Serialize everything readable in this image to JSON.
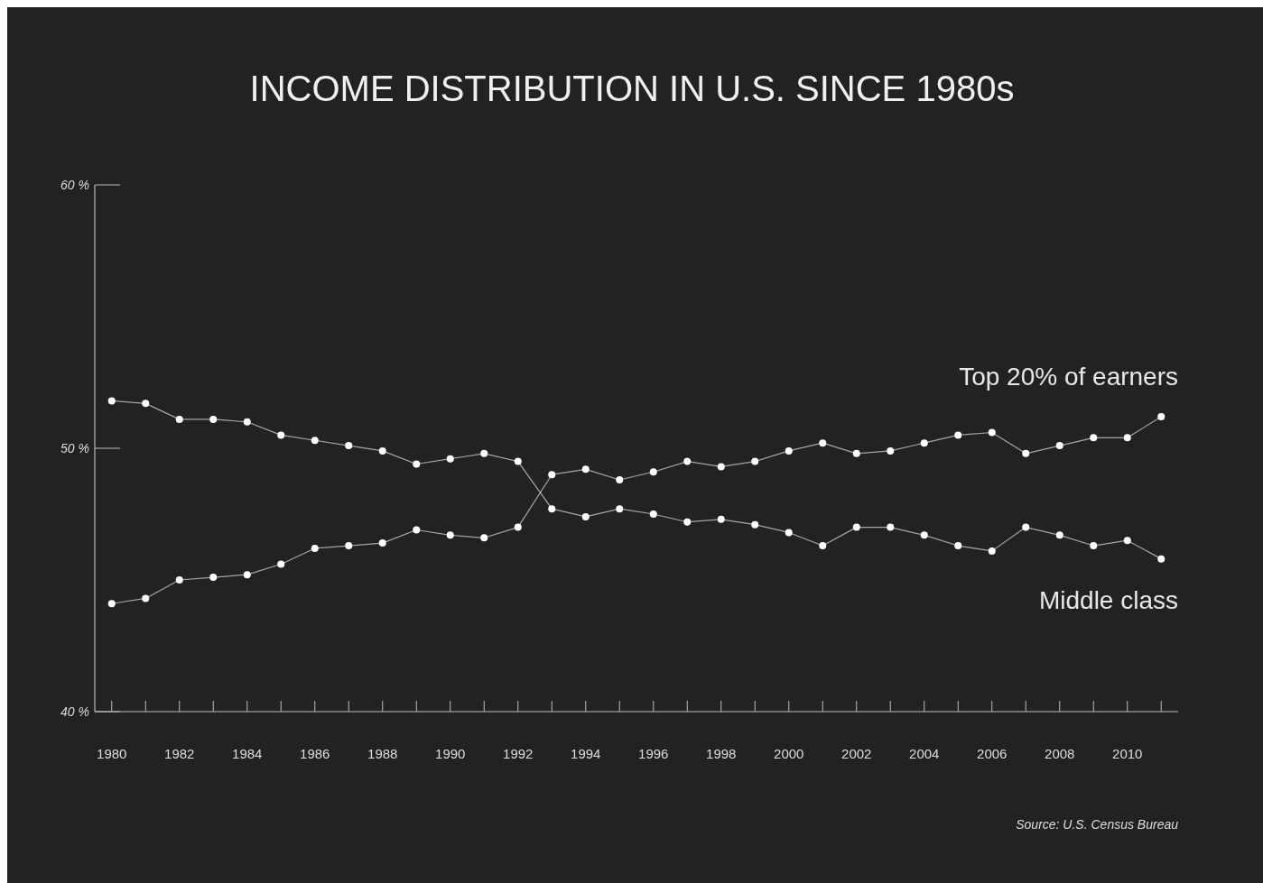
{
  "chart_data": {
    "type": "line",
    "title": "INCOME DISTRIBUTION IN U.S. SINCE 1980s",
    "x": [
      1980,
      1981,
      1982,
      1983,
      1984,
      1985,
      1986,
      1987,
      1988,
      1989,
      1990,
      1991,
      1992,
      1993,
      1994,
      1995,
      1996,
      1997,
      1998,
      1999,
      2000,
      2001,
      2002,
      2003,
      2004,
      2005,
      2006,
      2007,
      2008,
      2009,
      2010,
      2011
    ],
    "series": [
      {
        "name": "Top 20% of earners",
        "color": "#ffffff",
        "values": [
          44.1,
          44.3,
          45.0,
          45.1,
          45.2,
          45.6,
          46.2,
          46.3,
          46.4,
          46.9,
          46.7,
          46.6,
          47.0,
          49.0,
          49.2,
          48.8,
          49.1,
          49.5,
          49.3,
          49.5,
          49.9,
          50.2,
          49.8,
          49.9,
          50.2,
          50.5,
          50.6,
          49.8,
          50.1,
          50.4,
          50.4,
          51.2
        ]
      },
      {
        "name": "Middle class",
        "color": "#ffffff",
        "values": [
          51.8,
          51.7,
          51.1,
          51.1,
          51.0,
          50.5,
          50.3,
          50.1,
          49.9,
          49.4,
          49.6,
          49.8,
          49.5,
          47.7,
          47.4,
          47.7,
          47.5,
          47.2,
          47.3,
          47.1,
          46.8,
          46.3,
          47.0,
          47.0,
          46.7,
          46.3,
          46.1,
          47.0,
          46.7,
          46.3,
          46.5,
          45.8
        ]
      }
    ],
    "xlim": [
      1979.5,
      2011.5
    ],
    "xticks": [
      1980,
      {
        "value": 1981,
        "label": null
      },
      1982,
      {
        "value": 1983,
        "label": null
      },
      1984,
      {
        "value": 1985,
        "label": null
      },
      1986,
      {
        "value": 1987,
        "label": null
      },
      1988,
      {
        "value": 1989,
        "label": null
      },
      1990,
      {
        "value": 1991,
        "label": null
      },
      1992,
      {
        "value": 1993,
        "label": null
      },
      1994,
      {
        "value": 1995,
        "label": null
      },
      1996,
      {
        "value": 1997,
        "label": null
      },
      1998,
      {
        "value": 1999,
        "label": null
      },
      2000,
      {
        "value": 2001,
        "label": null
      },
      2002,
      {
        "value": 2003,
        "label": null
      },
      2004,
      {
        "value": 2005,
        "label": null
      },
      2006,
      {
        "value": 2007,
        "label": null
      },
      2008,
      {
        "value": 2009,
        "label": null
      },
      2010,
      {
        "value": 2011,
        "label": null
      }
    ],
    "ylim": [
      40,
      60
    ],
    "yticks": [
      {
        "value": 40,
        "label": "40 %"
      },
      {
        "value": 50,
        "label": "50 %"
      },
      {
        "value": 60,
        "label": "60 %"
      }
    ],
    "marker": "circle",
    "legend": "right",
    "grid": false,
    "annotations": [
      "Source: U.S. Census Bureau"
    ]
  }
}
